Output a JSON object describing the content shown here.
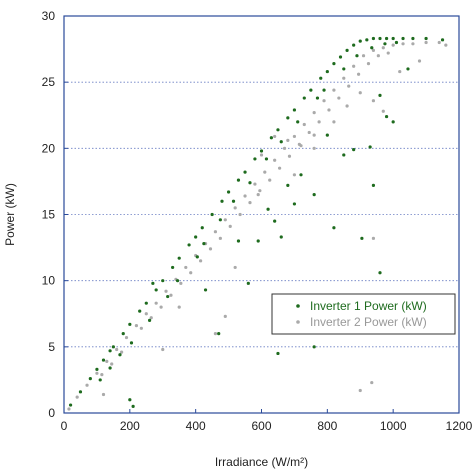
{
  "chart_data": {
    "type": "scatter",
    "title": "",
    "xlabel": "Irradiance (W/m²)",
    "ylabel": "Power (kW)",
    "xlim": [
      0,
      1200
    ],
    "ylim": [
      0,
      30
    ],
    "xticks": [
      0,
      200,
      400,
      600,
      800,
      1000,
      1200
    ],
    "yticks": [
      0,
      5,
      10,
      15,
      20,
      25,
      30
    ],
    "grid": "horizontal dotted",
    "legend": {
      "placement": "lower-right"
    },
    "series": [
      {
        "name": "Inverter 1 Power (kW)",
        "color": "#1e6b1e",
        "points": [
          [
            20,
            0.6
          ],
          [
            50,
            1.6
          ],
          [
            80,
            2.6
          ],
          [
            100,
            3.3
          ],
          [
            120,
            4.0
          ],
          [
            150,
            5.0
          ],
          [
            180,
            6.0
          ],
          [
            200,
            6.7
          ],
          [
            230,
            7.7
          ],
          [
            250,
            8.3
          ],
          [
            280,
            9.3
          ],
          [
            300,
            10.0
          ],
          [
            330,
            11.0
          ],
          [
            350,
            11.7
          ],
          [
            380,
            12.7
          ],
          [
            400,
            13.3
          ],
          [
            420,
            14.0
          ],
          [
            450,
            15.0
          ],
          [
            480,
            16.0
          ],
          [
            500,
            16.7
          ],
          [
            530,
            17.6
          ],
          [
            550,
            18.2
          ],
          [
            580,
            19.2
          ],
          [
            600,
            19.8
          ],
          [
            630,
            20.8
          ],
          [
            650,
            21.4
          ],
          [
            680,
            22.3
          ],
          [
            700,
            22.9
          ],
          [
            730,
            23.8
          ],
          [
            750,
            24.4
          ],
          [
            780,
            25.3
          ],
          [
            800,
            25.8
          ],
          [
            820,
            26.4
          ],
          [
            840,
            26.9
          ],
          [
            860,
            27.4
          ],
          [
            880,
            27.8
          ],
          [
            900,
            28.1
          ],
          [
            920,
            28.2
          ],
          [
            940,
            28.3
          ],
          [
            960,
            28.3
          ],
          [
            980,
            28.3
          ],
          [
            1000,
            28.3
          ],
          [
            1030,
            28.3
          ],
          [
            1060,
            28.3
          ],
          [
            1100,
            28.3
          ],
          [
            1150,
            28.2
          ],
          [
            110,
            2.5
          ],
          [
            140,
            3.4
          ],
          [
            170,
            4.4
          ],
          [
            205,
            5.3
          ],
          [
            260,
            7.0
          ],
          [
            315,
            8.8
          ],
          [
            345,
            10.0
          ],
          [
            405,
            11.8
          ],
          [
            425,
            12.8
          ],
          [
            475,
            14.6
          ],
          [
            515,
            16.0
          ],
          [
            565,
            17.4
          ],
          [
            615,
            19.2
          ],
          [
            660,
            20.5
          ],
          [
            710,
            22.0
          ],
          [
            770,
            23.8
          ],
          [
            790,
            24.4
          ],
          [
            850,
            26.0
          ],
          [
            890,
            27.0
          ],
          [
            935,
            27.6
          ],
          [
            975,
            27.9
          ],
          [
            1010,
            28.0
          ],
          [
            620,
            15.4
          ],
          [
            640,
            14.5
          ],
          [
            660,
            13.3
          ],
          [
            700,
            15.8
          ],
          [
            720,
            18.0
          ],
          [
            760,
            16.5
          ],
          [
            800,
            21.0
          ],
          [
            850,
            19.5
          ],
          [
            880,
            19.9
          ],
          [
            930,
            20.1
          ],
          [
            980,
            22.4
          ],
          [
            1000,
            22.0
          ],
          [
            940,
            17.2
          ],
          [
            960,
            10.6
          ],
          [
            650,
            4.5
          ],
          [
            760,
            5.0
          ],
          [
            430,
            9.3
          ],
          [
            470,
            6.0
          ],
          [
            560,
            9.8
          ],
          [
            590,
            13.0
          ],
          [
            200,
            1.0
          ],
          [
            140,
            4.7
          ],
          [
            270,
            9.8
          ],
          [
            210,
            0.5
          ],
          [
            530,
            13.0
          ],
          [
            680,
            17.2
          ],
          [
            820,
            14.0
          ],
          [
            905,
            13.2
          ],
          [
            960,
            24.0
          ],
          [
            1045,
            26.0
          ]
        ]
      },
      {
        "name": "Inverter 2 Power (kW)",
        "color": "#aaaaaa",
        "points": [
          [
            15,
            0.3
          ],
          [
            40,
            1.2
          ],
          [
            70,
            2.1
          ],
          [
            100,
            3.0
          ],
          [
            130,
            3.9
          ],
          [
            160,
            4.8
          ],
          [
            190,
            5.7
          ],
          [
            220,
            6.6
          ],
          [
            250,
            7.5
          ],
          [
            280,
            8.3
          ],
          [
            310,
            9.2
          ],
          [
            340,
            10.1
          ],
          [
            370,
            11.0
          ],
          [
            400,
            11.9
          ],
          [
            430,
            12.8
          ],
          [
            460,
            13.7
          ],
          [
            490,
            14.6
          ],
          [
            520,
            15.5
          ],
          [
            550,
            16.4
          ],
          [
            580,
            17.3
          ],
          [
            610,
            18.2
          ],
          [
            640,
            19.1
          ],
          [
            670,
            20.0
          ],
          [
            700,
            20.9
          ],
          [
            730,
            21.8
          ],
          [
            760,
            22.7
          ],
          [
            790,
            23.6
          ],
          [
            820,
            24.4
          ],
          [
            850,
            25.3
          ],
          [
            880,
            26.2
          ],
          [
            910,
            27.0
          ],
          [
            940,
            27.4
          ],
          [
            970,
            27.6
          ],
          [
            1000,
            27.8
          ],
          [
            1030,
            27.9
          ],
          [
            1060,
            27.9
          ],
          [
            1100,
            28.0
          ],
          [
            1140,
            28.0
          ],
          [
            1160,
            27.8
          ],
          [
            115,
            2.9
          ],
          [
            145,
            3.7
          ],
          [
            175,
            4.6
          ],
          [
            235,
            6.4
          ],
          [
            265,
            7.2
          ],
          [
            295,
            8.0
          ],
          [
            325,
            8.9
          ],
          [
            355,
            9.8
          ],
          [
            385,
            10.6
          ],
          [
            415,
            11.5
          ],
          [
            445,
            12.4
          ],
          [
            475,
            13.2
          ],
          [
            505,
            14.1
          ],
          [
            535,
            15.0
          ],
          [
            565,
            15.9
          ],
          [
            595,
            16.8
          ],
          [
            625,
            17.6
          ],
          [
            655,
            18.5
          ],
          [
            685,
            19.4
          ],
          [
            715,
            20.3
          ],
          [
            745,
            21.2
          ],
          [
            775,
            22.0
          ],
          [
            805,
            22.9
          ],
          [
            835,
            23.8
          ],
          [
            865,
            24.7
          ],
          [
            895,
            25.6
          ],
          [
            925,
            26.4
          ],
          [
            955,
            27.0
          ],
          [
            985,
            27.2
          ],
          [
            600,
            19.5
          ],
          [
            640,
            20.9
          ],
          [
            680,
            20.6
          ],
          [
            720,
            20.2
          ],
          [
            760,
            21.0
          ],
          [
            820,
            22.0
          ],
          [
            860,
            23.2
          ],
          [
            900,
            24.2
          ],
          [
            940,
            23.6
          ],
          [
            970,
            22.8
          ],
          [
            1020,
            25.8
          ],
          [
            1080,
            26.6
          ],
          [
            940,
            13.2
          ],
          [
            935,
            2.3
          ],
          [
            900,
            1.7
          ],
          [
            460,
            6.0
          ],
          [
            300,
            4.8
          ],
          [
            120,
            1.4
          ],
          [
            350,
            8.0
          ],
          [
            520,
            11.0
          ],
          [
            700,
            18.0
          ],
          [
            590,
            16.5
          ],
          [
            490,
            7.3
          ],
          [
            760,
            20.0
          ]
        ]
      }
    ]
  }
}
